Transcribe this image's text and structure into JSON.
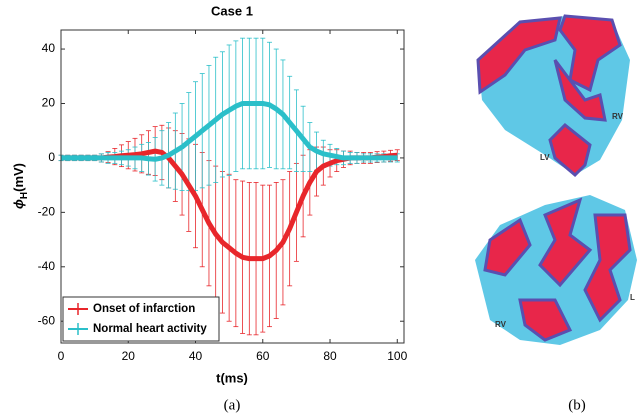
{
  "chart_data": {
    "type": "line",
    "title": "Case 1",
    "xlabel": "t(ms)",
    "ylabel": [
      "ϕ",
      "H",
      "(mV)"
    ],
    "x": [
      0,
      2,
      4,
      6,
      8,
      10,
      12,
      14,
      16,
      18,
      20,
      22,
      24,
      26,
      28,
      30,
      32,
      34,
      36,
      38,
      40,
      42,
      44,
      46,
      48,
      50,
      52,
      54,
      56,
      58,
      60,
      62,
      64,
      66,
      68,
      70,
      72,
      74,
      76,
      78,
      80,
      82,
      84,
      86,
      88,
      90,
      92,
      94,
      96,
      98,
      100
    ],
    "series": [
      {
        "name": "Onset of infarction",
        "color": "#e8262b",
        "values": [
          0,
          0,
          0,
          0,
          0,
          0,
          0,
          0.3,
          0.5,
          0.8,
          1,
          1.2,
          1.5,
          2,
          2.5,
          2,
          0,
          -3,
          -6,
          -10,
          -14,
          -19,
          -24,
          -28,
          -31,
          -33,
          -35,
          -36.5,
          -37,
          -37,
          -37,
          -36,
          -34,
          -31,
          -26,
          -20,
          -14,
          -9,
          -5,
          -3,
          -2,
          -1,
          -0.5,
          0,
          0,
          0,
          0,
          0.3,
          0.5,
          0.8,
          1
        ],
        "errors": [
          1,
          1,
          1,
          1,
          1,
          1,
          1.5,
          2,
          3,
          4,
          5,
          6,
          7,
          8,
          9,
          10,
          11,
          13,
          15,
          17,
          19,
          21,
          23,
          25,
          26,
          27,
          27,
          28,
          28,
          28,
          27,
          26,
          25,
          23,
          21,
          18,
          15,
          12,
          9,
          7,
          5,
          4,
          3,
          2.5,
          2,
          2,
          2,
          2,
          2,
          2,
          2
        ]
      },
      {
        "name": "Normal heart activity",
        "color": "#2bbfc9",
        "values": [
          0,
          0,
          0,
          0,
          0,
          0,
          0,
          0,
          0,
          0,
          0,
          0,
          0,
          -0.3,
          -0.5,
          0,
          1,
          2.5,
          4,
          6,
          8,
          10,
          12,
          14,
          16,
          17.5,
          19,
          20,
          20,
          20,
          20,
          19.5,
          18,
          16,
          13,
          10,
          7,
          4,
          2.5,
          1.5,
          1,
          0.5,
          0,
          0,
          0,
          0,
          0,
          0,
          0,
          0,
          0
        ],
        "errors": [
          1,
          1,
          1,
          1,
          1,
          1,
          1.5,
          2,
          2,
          2.5,
          3,
          4,
          5,
          6,
          8,
          10,
          12,
          14,
          16,
          18,
          20,
          21,
          22,
          23,
          23,
          24,
          24,
          24,
          24,
          24,
          24,
          23,
          22,
          20,
          17,
          15,
          12,
          9,
          7,
          5,
          4,
          3,
          2.5,
          2,
          2,
          1.5,
          1.5,
          1.5,
          1.5,
          1.5,
          1.5
        ]
      }
    ],
    "xlim": [
      0,
      102
    ],
    "ylim": [
      -68,
      47
    ],
    "xticks": [
      0,
      20,
      40,
      60,
      80,
      100
    ],
    "yticks": [
      -60,
      -40,
      -20,
      0,
      20,
      40
    ],
    "legend": "lower left"
  },
  "figure": {
    "panel_labels": [
      "(a)",
      "(b)"
    ],
    "top_heart": [
      "RV",
      "LV"
    ],
    "bottom_heart": [
      "RV",
      "L"
    ]
  }
}
